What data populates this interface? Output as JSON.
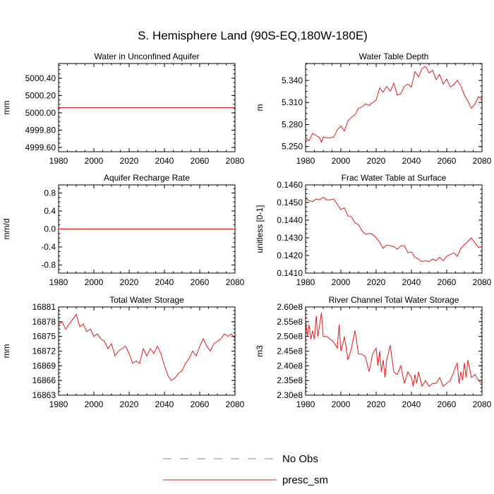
{
  "title": "S. Hemisphere Land (90S-EQ,180W-180E)",
  "legend": {
    "items": [
      {
        "label": "No Obs",
        "style": "dashed",
        "color": "#7f7fbf"
      },
      {
        "label": "presc_sm",
        "style": "solid",
        "color": "#e41a1c"
      }
    ]
  },
  "colors": {
    "series": "#e41a1c",
    "axis": "#000000"
  },
  "chart_data": [
    {
      "type": "line",
      "title": "Water in Unconfined Aquifer",
      "ylabel": "mm",
      "xlim": [
        1980,
        2080
      ],
      "ylim": [
        4999.55,
        5000.57
      ],
      "xticks": [
        1980,
        2000,
        2020,
        2040,
        2060,
        2080
      ],
      "xtick_labels": [
        "1980",
        "2000",
        "2020",
        "2040",
        "2060",
        "2080"
      ],
      "yticks": [
        4999.6,
        4999.8,
        5000.0,
        5000.2,
        5000.4
      ],
      "ytick_labels": [
        "4999.60",
        "4999.80",
        "5000.00",
        "5000.20",
        "5000.40"
      ],
      "series": [
        {
          "name": "presc_sm",
          "x": [
            1980,
            2080
          ],
          "values": [
            5000.06,
            5000.06
          ]
        }
      ]
    },
    {
      "type": "line",
      "title": "Water Table Depth",
      "ylabel": "m",
      "xlim": [
        1980,
        2080
      ],
      "ylim": [
        5.243,
        5.363
      ],
      "xticks": [
        1980,
        2000,
        2020,
        2040,
        2060,
        2080
      ],
      "xtick_labels": [
        "1980",
        "2000",
        "2020",
        "2040",
        "2060",
        "2080"
      ],
      "yticks": [
        5.25,
        5.28,
        5.31,
        5.34
      ],
      "ytick_labels": [
        "5.250",
        "5.280",
        "5.310",
        "5.340"
      ],
      "series": [
        {
          "name": "presc_sm",
          "x": [
            1980,
            1982,
            1984,
            1986,
            1988,
            1989,
            1990,
            1992,
            1994,
            1996,
            1998,
            2000,
            2002,
            2004,
            2006,
            2008,
            2010,
            2012,
            2014,
            2016,
            2018,
            2020,
            2022,
            2024,
            2026,
            2028,
            2030,
            2032,
            2034,
            2036,
            2038,
            2040,
            2042,
            2044,
            2046,
            2048,
            2050,
            2052,
            2054,
            2056,
            2058,
            2060,
            2062,
            2064,
            2066,
            2068,
            2070,
            2072,
            2074,
            2076,
            2078,
            2080
          ],
          "values": [
            5.262,
            5.258,
            5.268,
            5.265,
            5.262,
            5.256,
            5.263,
            5.262,
            5.262,
            5.263,
            5.273,
            5.278,
            5.271,
            5.285,
            5.29,
            5.293,
            5.302,
            5.304,
            5.308,
            5.306,
            5.31,
            5.313,
            5.33,
            5.324,
            5.332,
            5.325,
            5.336,
            5.32,
            5.322,
            5.332,
            5.335,
            5.331,
            5.352,
            5.345,
            5.356,
            5.359,
            5.35,
            5.354,
            5.341,
            5.348,
            5.335,
            5.342,
            5.331,
            5.334,
            5.34,
            5.333,
            5.32,
            5.312,
            5.302,
            5.308,
            5.318,
            5.313
          ]
        }
      ]
    },
    {
      "type": "line",
      "title": "Aquifer Recharge Rate",
      "ylabel": "mm/d",
      "xlim": [
        1980,
        2080
      ],
      "ylim": [
        -0.98,
        0.98
      ],
      "xticks": [
        1980,
        2000,
        2020,
        2040,
        2060,
        2080
      ],
      "xtick_labels": [
        "1980",
        "2000",
        "2020",
        "2040",
        "2060",
        "2080"
      ],
      "yticks": [
        -0.8,
        -0.4,
        0,
        0.4,
        0.8
      ],
      "ytick_labels": [
        "-0.8",
        "-0.4",
        "0.0",
        "0.4",
        "0.8"
      ],
      "series": [
        {
          "name": "presc_sm",
          "x": [
            1980,
            2080
          ],
          "values": [
            0,
            0
          ]
        }
      ]
    },
    {
      "type": "line",
      "title": "Frac Water Table at Surface",
      "ylabel": "unitless [0-1]",
      "xlim": [
        1980,
        2080
      ],
      "ylim": [
        0.141,
        0.146
      ],
      "xticks": [
        1980,
        2000,
        2020,
        2040,
        2060,
        2080
      ],
      "xtick_labels": [
        "1980",
        "2000",
        "2020",
        "2040",
        "2060",
        "2080"
      ],
      "yticks": [
        0.141,
        0.142,
        0.143,
        0.144,
        0.145,
        0.146
      ],
      "ytick_labels": [
        "0.1410",
        "0.1420",
        "0.1430",
        "0.1440",
        "0.1450",
        "0.1460"
      ],
      "series": [
        {
          "name": "presc_sm",
          "x": [
            1980,
            1982,
            1984,
            1986,
            1988,
            1990,
            1992,
            1994,
            1996,
            1998,
            2000,
            2002,
            2004,
            2006,
            2008,
            2010,
            2012,
            2014,
            2016,
            2018,
            2020,
            2022,
            2024,
            2026,
            2028,
            2030,
            2032,
            2034,
            2036,
            2038,
            2040,
            2042,
            2044,
            2046,
            2048,
            2050,
            2052,
            2054,
            2056,
            2058,
            2060,
            2062,
            2064,
            2066,
            2068,
            2070,
            2072,
            2074,
            2076,
            2078,
            2080
          ],
          "values": [
            0.14525,
            0.1451,
            0.14505,
            0.1452,
            0.14515,
            0.1453,
            0.14515,
            0.14515,
            0.1452,
            0.1449,
            0.1446,
            0.1447,
            0.14425,
            0.1442,
            0.14385,
            0.14375,
            0.1434,
            0.1432,
            0.14325,
            0.1432,
            0.143,
            0.14275,
            0.1424,
            0.1426,
            0.14255,
            0.1425,
            0.14235,
            0.14255,
            0.14255,
            0.14215,
            0.1422,
            0.1419,
            0.1418,
            0.14165,
            0.1417,
            0.14165,
            0.1418,
            0.1417,
            0.1419,
            0.1417,
            0.14195,
            0.14205,
            0.14215,
            0.14195,
            0.1424,
            0.1426,
            0.1428,
            0.143,
            0.1427,
            0.14245,
            0.1425
          ]
        }
      ]
    },
    {
      "type": "line",
      "title": "Total Water Storage",
      "ylabel": "mm",
      "xlim": [
        1980,
        2080
      ],
      "ylim": [
        16863,
        16881
      ],
      "xticks": [
        1980,
        2000,
        2020,
        2040,
        2060,
        2080
      ],
      "xtick_labels": [
        "1980",
        "2000",
        "2020",
        "2040",
        "2060",
        "2080"
      ],
      "yticks": [
        16863,
        16866,
        16869,
        16872,
        16875,
        16878,
        16881
      ],
      "ytick_labels": [
        "16863",
        "16866",
        "16869",
        "16872",
        "16875",
        "16878",
        "16881"
      ],
      "series": [
        {
          "name": "presc_sm",
          "x": [
            1980,
            1982,
            1984,
            1986,
            1988,
            1990,
            1992,
            1994,
            1996,
            1998,
            2000,
            2002,
            2004,
            2006,
            2008,
            2010,
            2012,
            2014,
            2016,
            2018,
            2020,
            2022,
            2024,
            2026,
            2028,
            2030,
            2032,
            2034,
            2036,
            2038,
            2040,
            2042,
            2044,
            2046,
            2048,
            2050,
            2052,
            2054,
            2056,
            2058,
            2060,
            2062,
            2064,
            2066,
            2068,
            2070,
            2072,
            2074,
            2076,
            2078,
            2080
          ],
          "values": [
            16877.5,
            16878,
            16876.5,
            16877.5,
            16878.5,
            16879.5,
            16877,
            16877.5,
            16876,
            16876.5,
            16875,
            16875.5,
            16874.5,
            16874,
            16872.5,
            16873.5,
            16871,
            16872,
            16872.5,
            16873,
            16871.5,
            16869.5,
            16870,
            16869.5,
            16872.5,
            16871,
            16872.5,
            16871.5,
            16873,
            16871.5,
            16869,
            16867,
            16866,
            16866.5,
            16867.5,
            16868,
            16869.5,
            16870.5,
            16872,
            16871,
            16873,
            16874.5,
            16873,
            16872,
            16873.5,
            16874,
            16874.5,
            16875.5,
            16875,
            16875.5,
            16874.5
          ]
        }
      ]
    },
    {
      "type": "line",
      "title": "River Channel Total Water Storage",
      "ylabel": "m3",
      "xlim": [
        1980,
        2080
      ],
      "ylim": [
        230000000.0,
        260000000.0
      ],
      "xticks": [
        1980,
        2000,
        2020,
        2040,
        2060,
        2080
      ],
      "xtick_labels": [
        "1980",
        "2000",
        "2020",
        "2040",
        "2060",
        "2080"
      ],
      "yticks": [
        230000000.0,
        235000000.0,
        240000000.0,
        245000000.0,
        250000000.0,
        255000000.0,
        260000000.0
      ],
      "ytick_labels": [
        "2.30e8",
        "2.35e8",
        "2.40e8",
        "2.45e8",
        "2.50e8",
        "2.55e8",
        "2.60e8"
      ],
      "series": [
        {
          "name": "presc_sm",
          "x": [
            1980,
            1981,
            1982,
            1983,
            1984,
            1985,
            1986,
            1987,
            1988,
            1989,
            1990,
            1992,
            1994,
            1996,
            1998,
            1999,
            2000,
            2001,
            2002,
            2004,
            2006,
            2008,
            2010,
            2012,
            2014,
            2016,
            2018,
            2020,
            2021,
            2022,
            2023,
            2024,
            2025,
            2026,
            2028,
            2030,
            2032,
            2034,
            2036,
            2038,
            2040,
            2041,
            2042,
            2043,
            2044,
            2046,
            2048,
            2050,
            2052,
            2054,
            2056,
            2058,
            2060,
            2062,
            2064,
            2066,
            2067,
            2068,
            2069,
            2070,
            2071,
            2072,
            2074,
            2076,
            2078,
            2080
          ],
          "values": [
            256000000.0,
            250000000.0,
            254000000.0,
            249000000.0,
            252000000.0,
            249000000.0,
            257000000.0,
            250000000.0,
            254000000.0,
            258000000.0,
            250000000.0,
            250000000.0,
            249000000.0,
            248000000.0,
            246000000.0,
            254000000.0,
            245000000.0,
            247000000.0,
            250000000.0,
            242000000.0,
            246000000.0,
            252000000.0,
            244000000.0,
            244000000.0,
            243000000.0,
            238000000.0,
            244000000.0,
            246000000.0,
            240000000.0,
            245000000.0,
            238000000.0,
            242000000.0,
            236000000.0,
            242000000.0,
            247000000.0,
            238000000.0,
            237000000.0,
            240000000.0,
            234000000.0,
            238000000.0,
            236000000.0,
            233000000.0,
            237000000.0,
            234000000.0,
            238000000.0,
            233000000.0,
            235000000.0,
            233000000.0,
            234000000.0,
            234000000.0,
            236000000.0,
            233000000.0,
            234000000.0,
            235000000.0,
            238000000.0,
            241000000.0,
            234000000.0,
            238000000.0,
            235000000.0,
            241000000.0,
            236000000.0,
            242000000.0,
            236000000.0,
            237000000.0,
            235000000.0,
            234000000.0
          ]
        }
      ]
    }
  ]
}
